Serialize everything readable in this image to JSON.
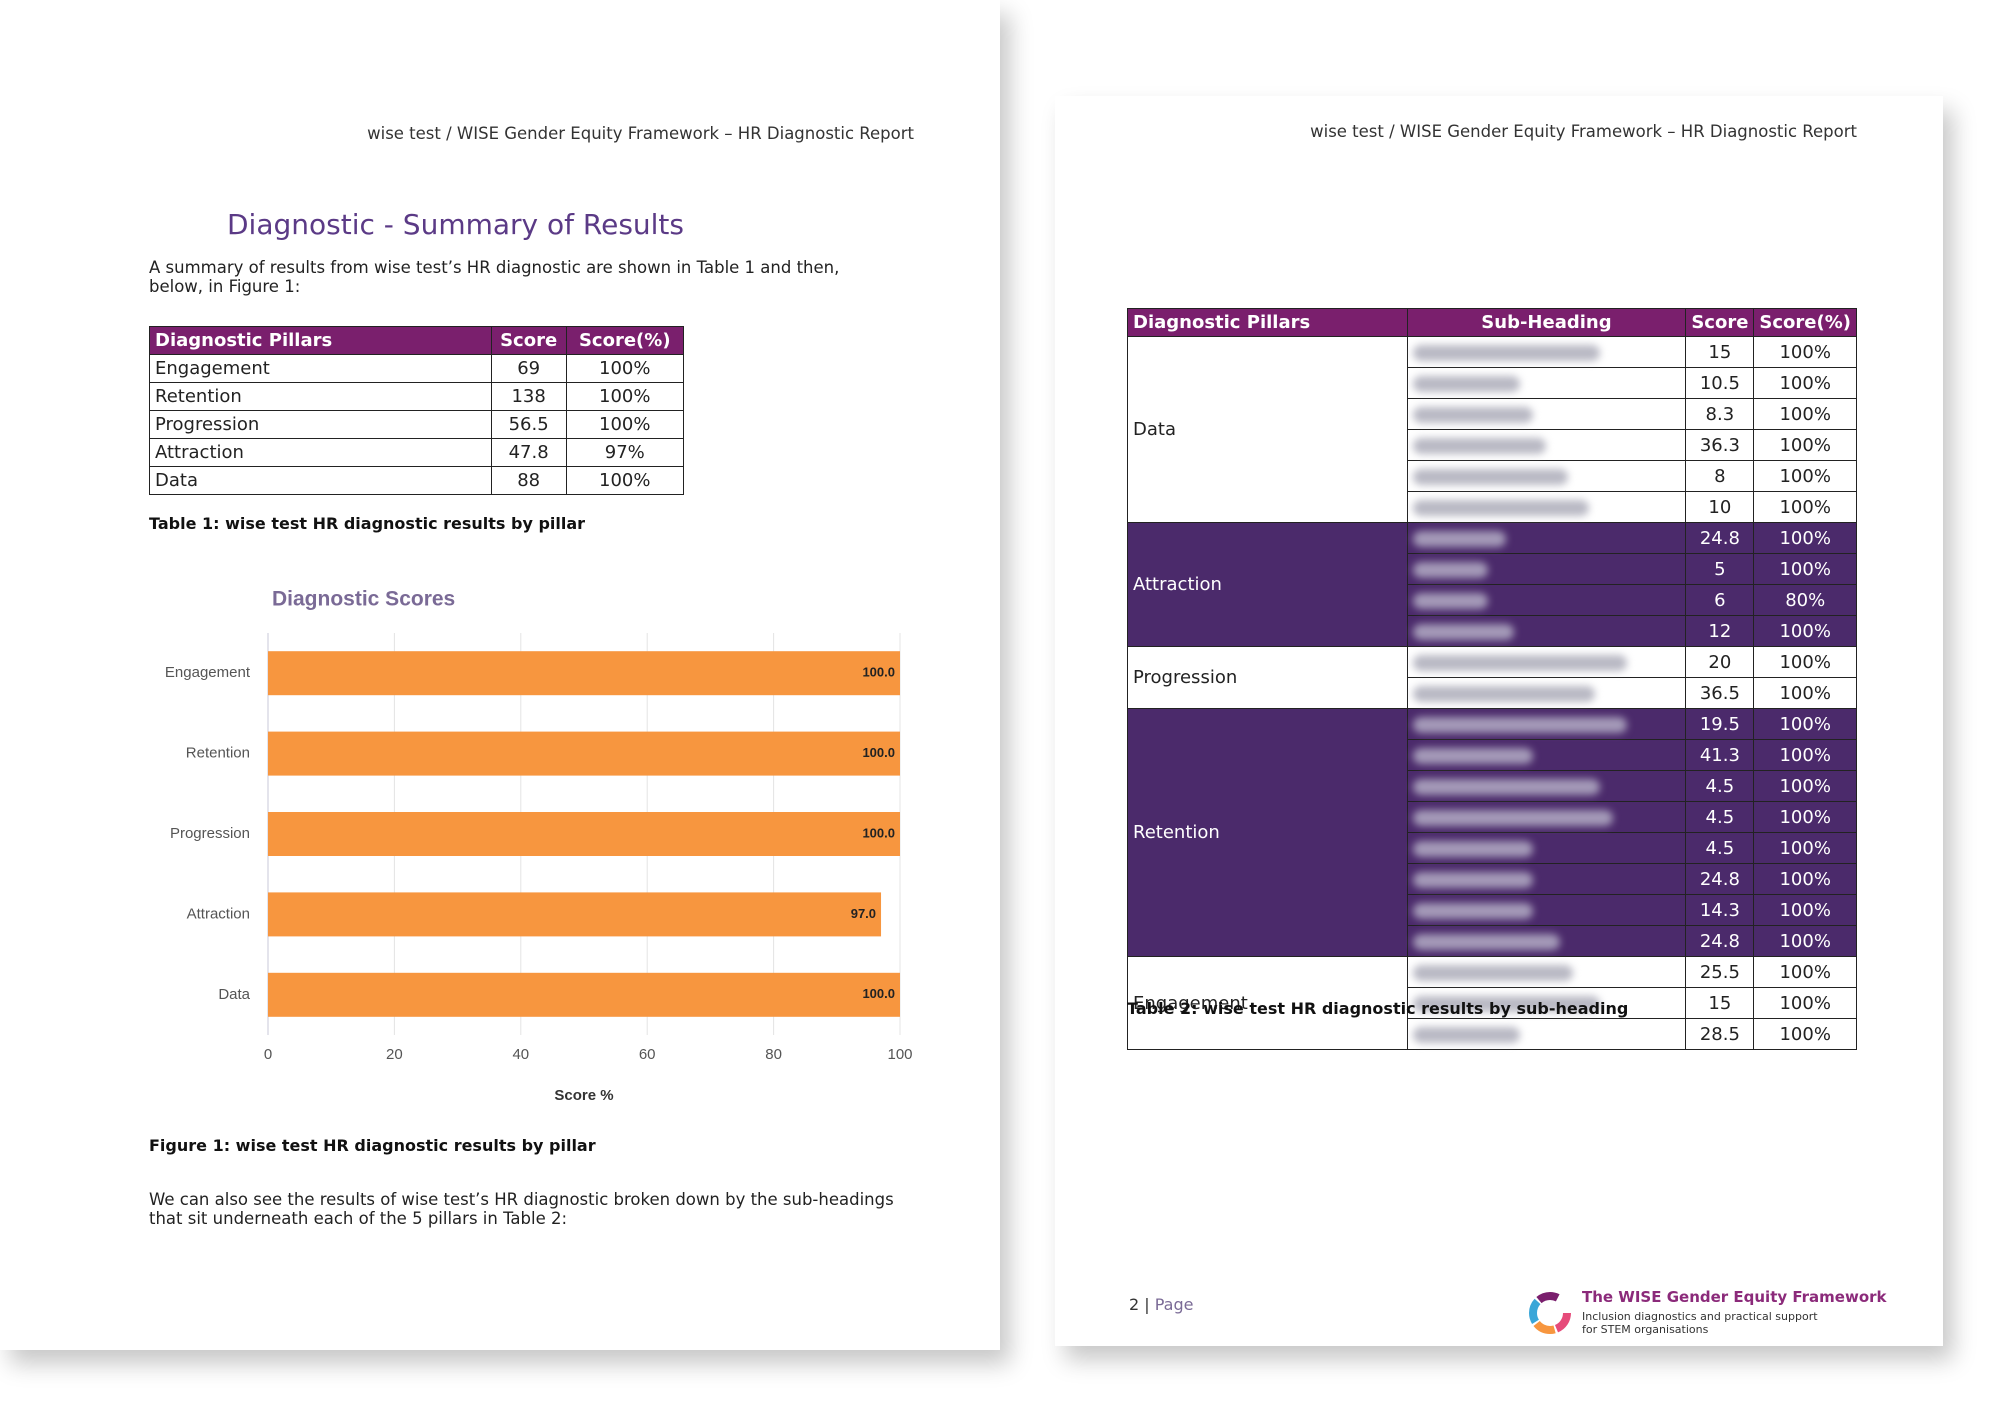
{
  "page1": {
    "header": "wise test / WISE Gender Equity Framework – HR Diagnostic Report",
    "heading": "Diagnostic - Summary of Results",
    "intro": "A summary of results from wise test’s HR diagnostic are shown in Table 1 and then, below, in Figure 1:",
    "table1": {
      "columns": [
        "Diagnostic Pillars",
        "Score",
        "Score(%)"
      ],
      "rows": [
        [
          "Engagement",
          69,
          "100%"
        ],
        [
          "Retention",
          138,
          "100%"
        ],
        [
          "Progression",
          56.5,
          "100%"
        ],
        [
          "Attraction",
          47.8,
          "97%"
        ],
        [
          "Data",
          88,
          "100%"
        ]
      ]
    },
    "table1_caption": "Table 1: wise test HR diagnostic results by pillar",
    "chart_data": {
      "type": "bar",
      "title": "Diagnostic Scores",
      "categories": [
        "Engagement",
        "Retention",
        "Progression",
        "Attraction",
        "Data"
      ],
      "values": [
        100,
        100,
        100,
        97,
        100
      ],
      "value_labels": [
        "100.0",
        "100.0",
        "100.0",
        "97.0",
        "100.0"
      ],
      "color": "#f7963f",
      "xlim": [
        0,
        100
      ],
      "xticks": [
        0,
        20,
        40,
        60,
        80,
        100
      ],
      "xlabel": "Score %",
      "grid": true
    },
    "figure_caption": "Figure 1: wise test HR diagnostic results by pillar",
    "outro": "We can also see the results of wise test’s HR diagnostic broken down by the sub-headings that sit underneath each of the 5 pillars in Table 2:"
  },
  "page2": {
    "header": "wise test / WISE Gender Equity Framework – HR Diagnostic Report",
    "table2": {
      "columns": [
        "Diagnostic Pillars",
        "Sub-Heading",
        "Score",
        "Score(%)"
      ],
      "groups": [
        {
          "pillar": "Data",
          "highlight": false,
          "rows": [
            [
              15,
              "100%"
            ],
            [
              10.5,
              "100%"
            ],
            [
              8.3,
              "100%"
            ],
            [
              36.3,
              "100%"
            ],
            [
              8,
              "100%"
            ],
            [
              10,
              "100%"
            ]
          ]
        },
        {
          "pillar": "Attraction",
          "highlight": true,
          "rows": [
            [
              24.8,
              "100%"
            ],
            [
              5,
              "100%"
            ],
            [
              6,
              "80%"
            ],
            [
              12,
              "100%"
            ]
          ]
        },
        {
          "pillar": "Progression",
          "highlight": false,
          "rows": [
            [
              20,
              "100%"
            ],
            [
              36.5,
              "100%"
            ]
          ]
        },
        {
          "pillar": "Retention",
          "highlight": true,
          "rows": [
            [
              19.5,
              "100%"
            ],
            [
              41.3,
              "100%"
            ],
            [
              4.5,
              "100%"
            ],
            [
              4.5,
              "100%"
            ],
            [
              4.5,
              "100%"
            ],
            [
              24.8,
              "100%"
            ],
            [
              14.3,
              "100%"
            ],
            [
              24.8,
              "100%"
            ]
          ]
        },
        {
          "pillar": "Engagement",
          "highlight": false,
          "rows": [
            [
              25.5,
              "100%"
            ],
            [
              15,
              "100%"
            ],
            [
              28.5,
              "100%"
            ]
          ]
        }
      ]
    },
    "table2_caption": "Table 2: wise test HR diagnostic results by sub-heading",
    "footer": {
      "page_number": "2",
      "page_label": "Page",
      "brand_title": "The WISE Gender Equity Framework",
      "brand_tagline": [
        "Inclusion diagnostics and practical support",
        "for STEM organisations"
      ]
    }
  }
}
